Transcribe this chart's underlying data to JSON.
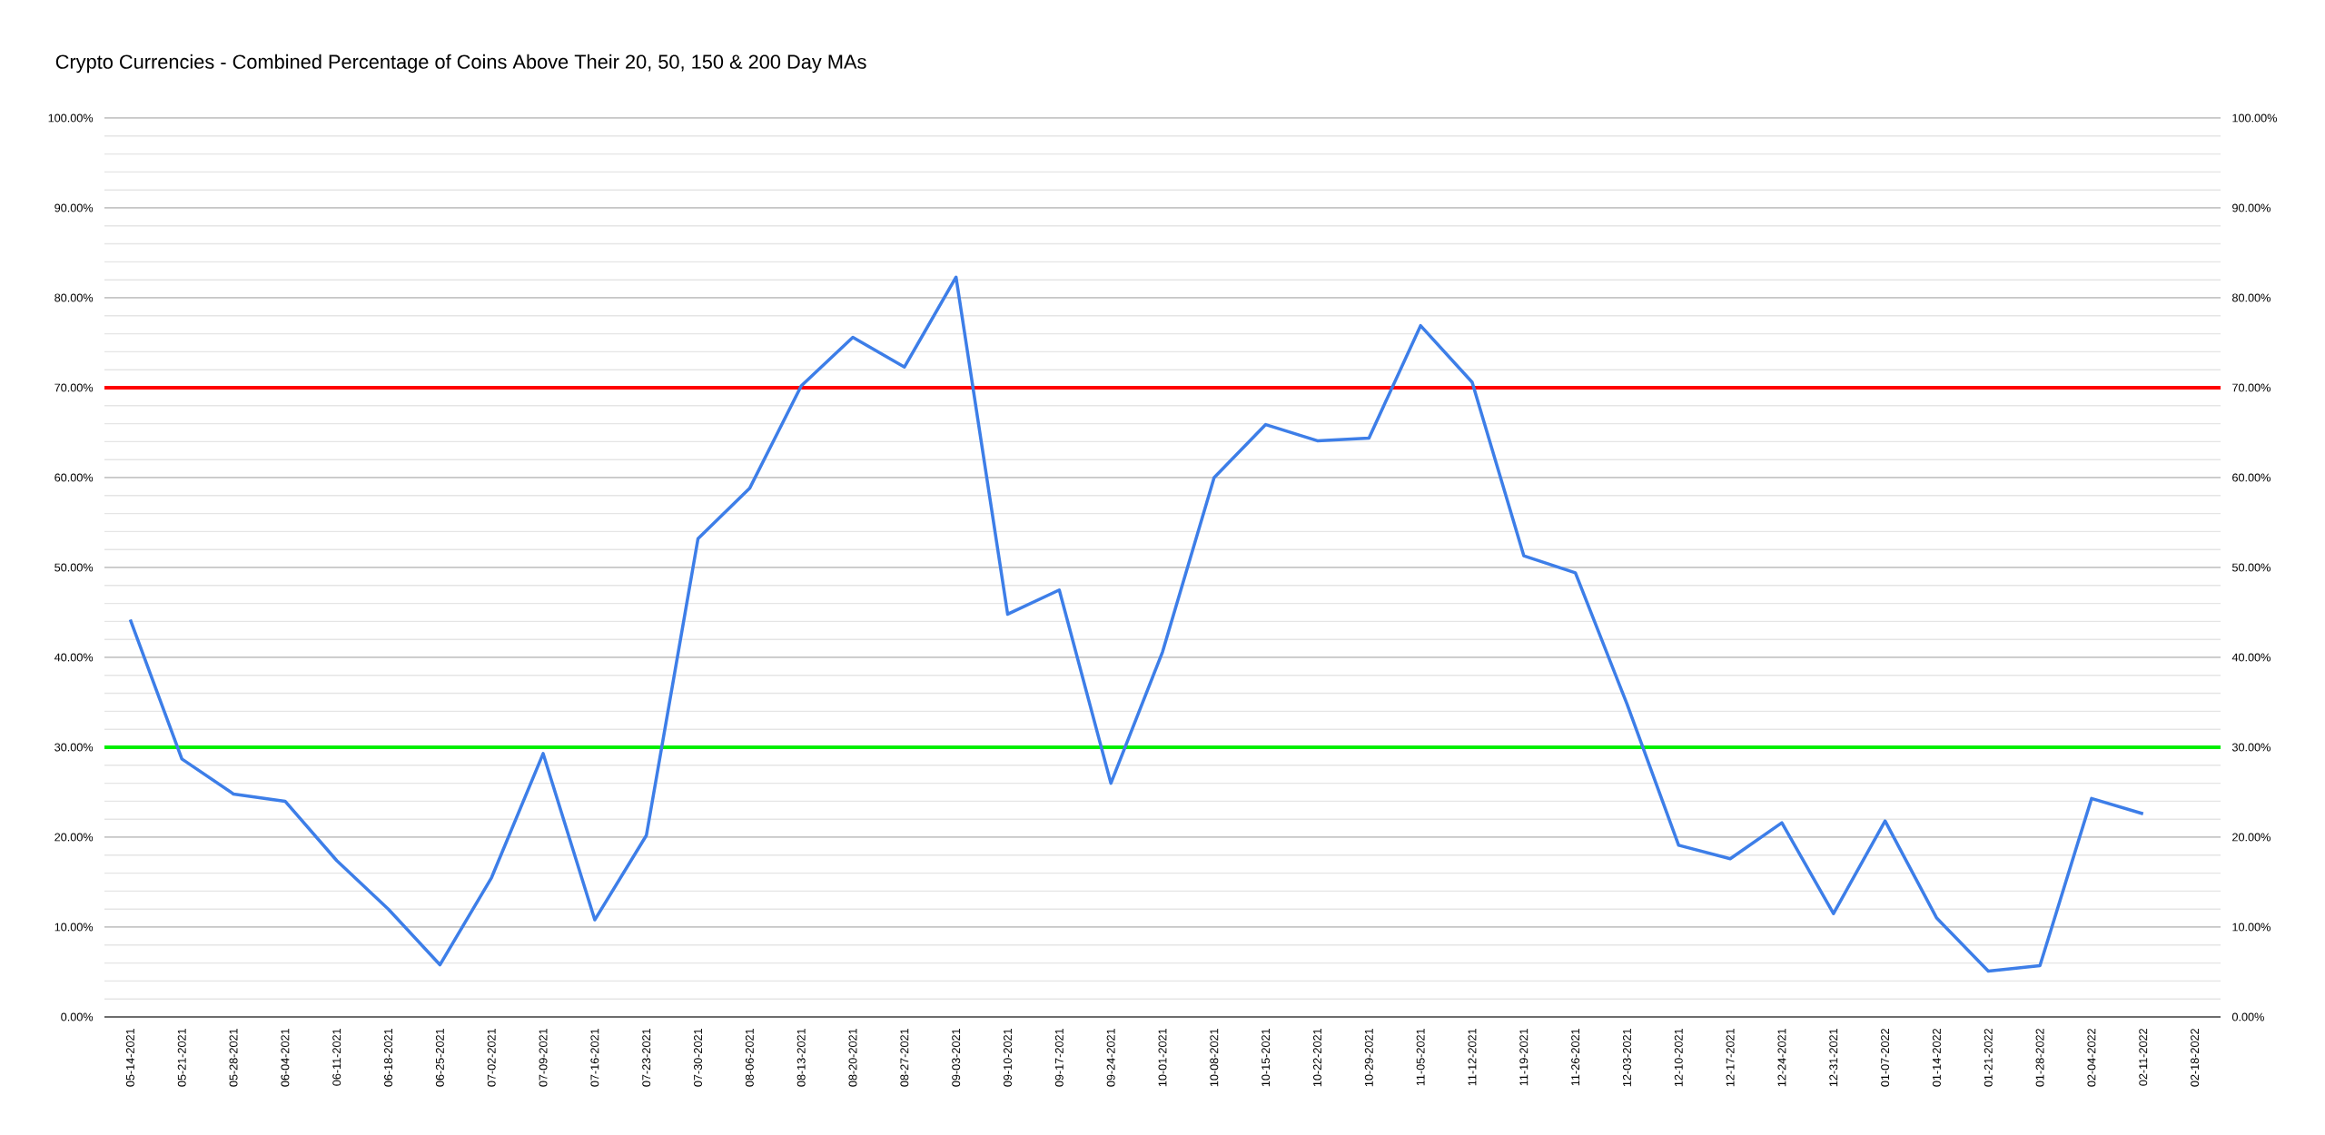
{
  "chart_data": {
    "type": "line",
    "title": "Crypto Currencies - Combined Percentage of Coins Above Their 20, 50, 150 & 200 Day MAs",
    "categories": [
      "05-14-2021",
      "05-21-2021",
      "05-28-2021",
      "06-04-2021",
      "06-11-2021",
      "06-18-2021",
      "06-25-2021",
      "07-02-2021",
      "07-09-2021",
      "07-16-2021",
      "07-23-2021",
      "07-30-2021",
      "08-06-2021",
      "08-13-2021",
      "08-20-2021",
      "08-27-2021",
      "09-03-2021",
      "09-10-2021",
      "09-17-2021",
      "09-24-2021",
      "10-01-2021",
      "10-08-2021",
      "10-15-2021",
      "10-22-2021",
      "10-29-2021",
      "11-05-2021",
      "11-12-2021",
      "11-19-2021",
      "11-26-2021",
      "12-03-2021",
      "12-10-2021",
      "12-17-2021",
      "12-24-2021",
      "12-31-2021",
      "01-07-2022",
      "01-14-2022",
      "01-21-2022",
      "01-28-2022",
      "02-04-2022",
      "02-11-2022",
      "02-18-2022"
    ],
    "series": [
      {
        "color": "#3d7ee8",
        "values": [
          44.2,
          28.7,
          24.8,
          24.0,
          17.4,
          12.0,
          5.8,
          15.5,
          29.3,
          10.8,
          20.2,
          53.2,
          58.8,
          70.2,
          75.6,
          72.3,
          82.3,
          44.8,
          47.5,
          26.0,
          40.6,
          60.0,
          65.9,
          64.1,
          64.4,
          76.9,
          70.6,
          51.3,
          49.4,
          34.8,
          19.1,
          17.6,
          21.6,
          11.5,
          21.8,
          11.0,
          5.1,
          5.7,
          24.3,
          22.6,
          null
        ]
      }
    ],
    "ylim": [
      0,
      100
    ],
    "yticks": [
      {
        "value": 0,
        "label": "0.00%"
      },
      {
        "value": 10,
        "label": "10.00%"
      },
      {
        "value": 20,
        "label": "20.00%"
      },
      {
        "value": 30,
        "label": "30.00%"
      },
      {
        "value": 40,
        "label": "40.00%"
      },
      {
        "value": 50,
        "label": "50.00%"
      },
      {
        "value": 60,
        "label": "60.00%"
      },
      {
        "value": 70,
        "label": "70.00%"
      },
      {
        "value": 80,
        "label": "80.00%"
      },
      {
        "value": 90,
        "label": "90.00%"
      },
      {
        "value": 100,
        "label": "100.00%"
      }
    ],
    "y2lim": [
      0,
      100
    ],
    "y2ticks": [
      {
        "value": 0,
        "label": "0.00%"
      },
      {
        "value": 10,
        "label": "10.00%"
      },
      {
        "value": 20,
        "label": "20.00%"
      },
      {
        "value": 30,
        "label": "30.00%"
      },
      {
        "value": 40,
        "label": "40.00%"
      },
      {
        "value": 50,
        "label": "50.00%"
      },
      {
        "value": 60,
        "label": "60.00%"
      },
      {
        "value": 70,
        "label": "70.00%"
      },
      {
        "value": 80,
        "label": "80.00%"
      },
      {
        "value": 90,
        "label": "90.00%"
      },
      {
        "value": 100,
        "label": "100.00%"
      }
    ],
    "ref_lines": [
      {
        "axis": "y",
        "value": 70,
        "color": "#ff0000"
      },
      {
        "axis": "y",
        "value": 30,
        "color": "#00ee00"
      }
    ],
    "grid": "y",
    "marker": "none",
    "line_style": "solid"
  }
}
